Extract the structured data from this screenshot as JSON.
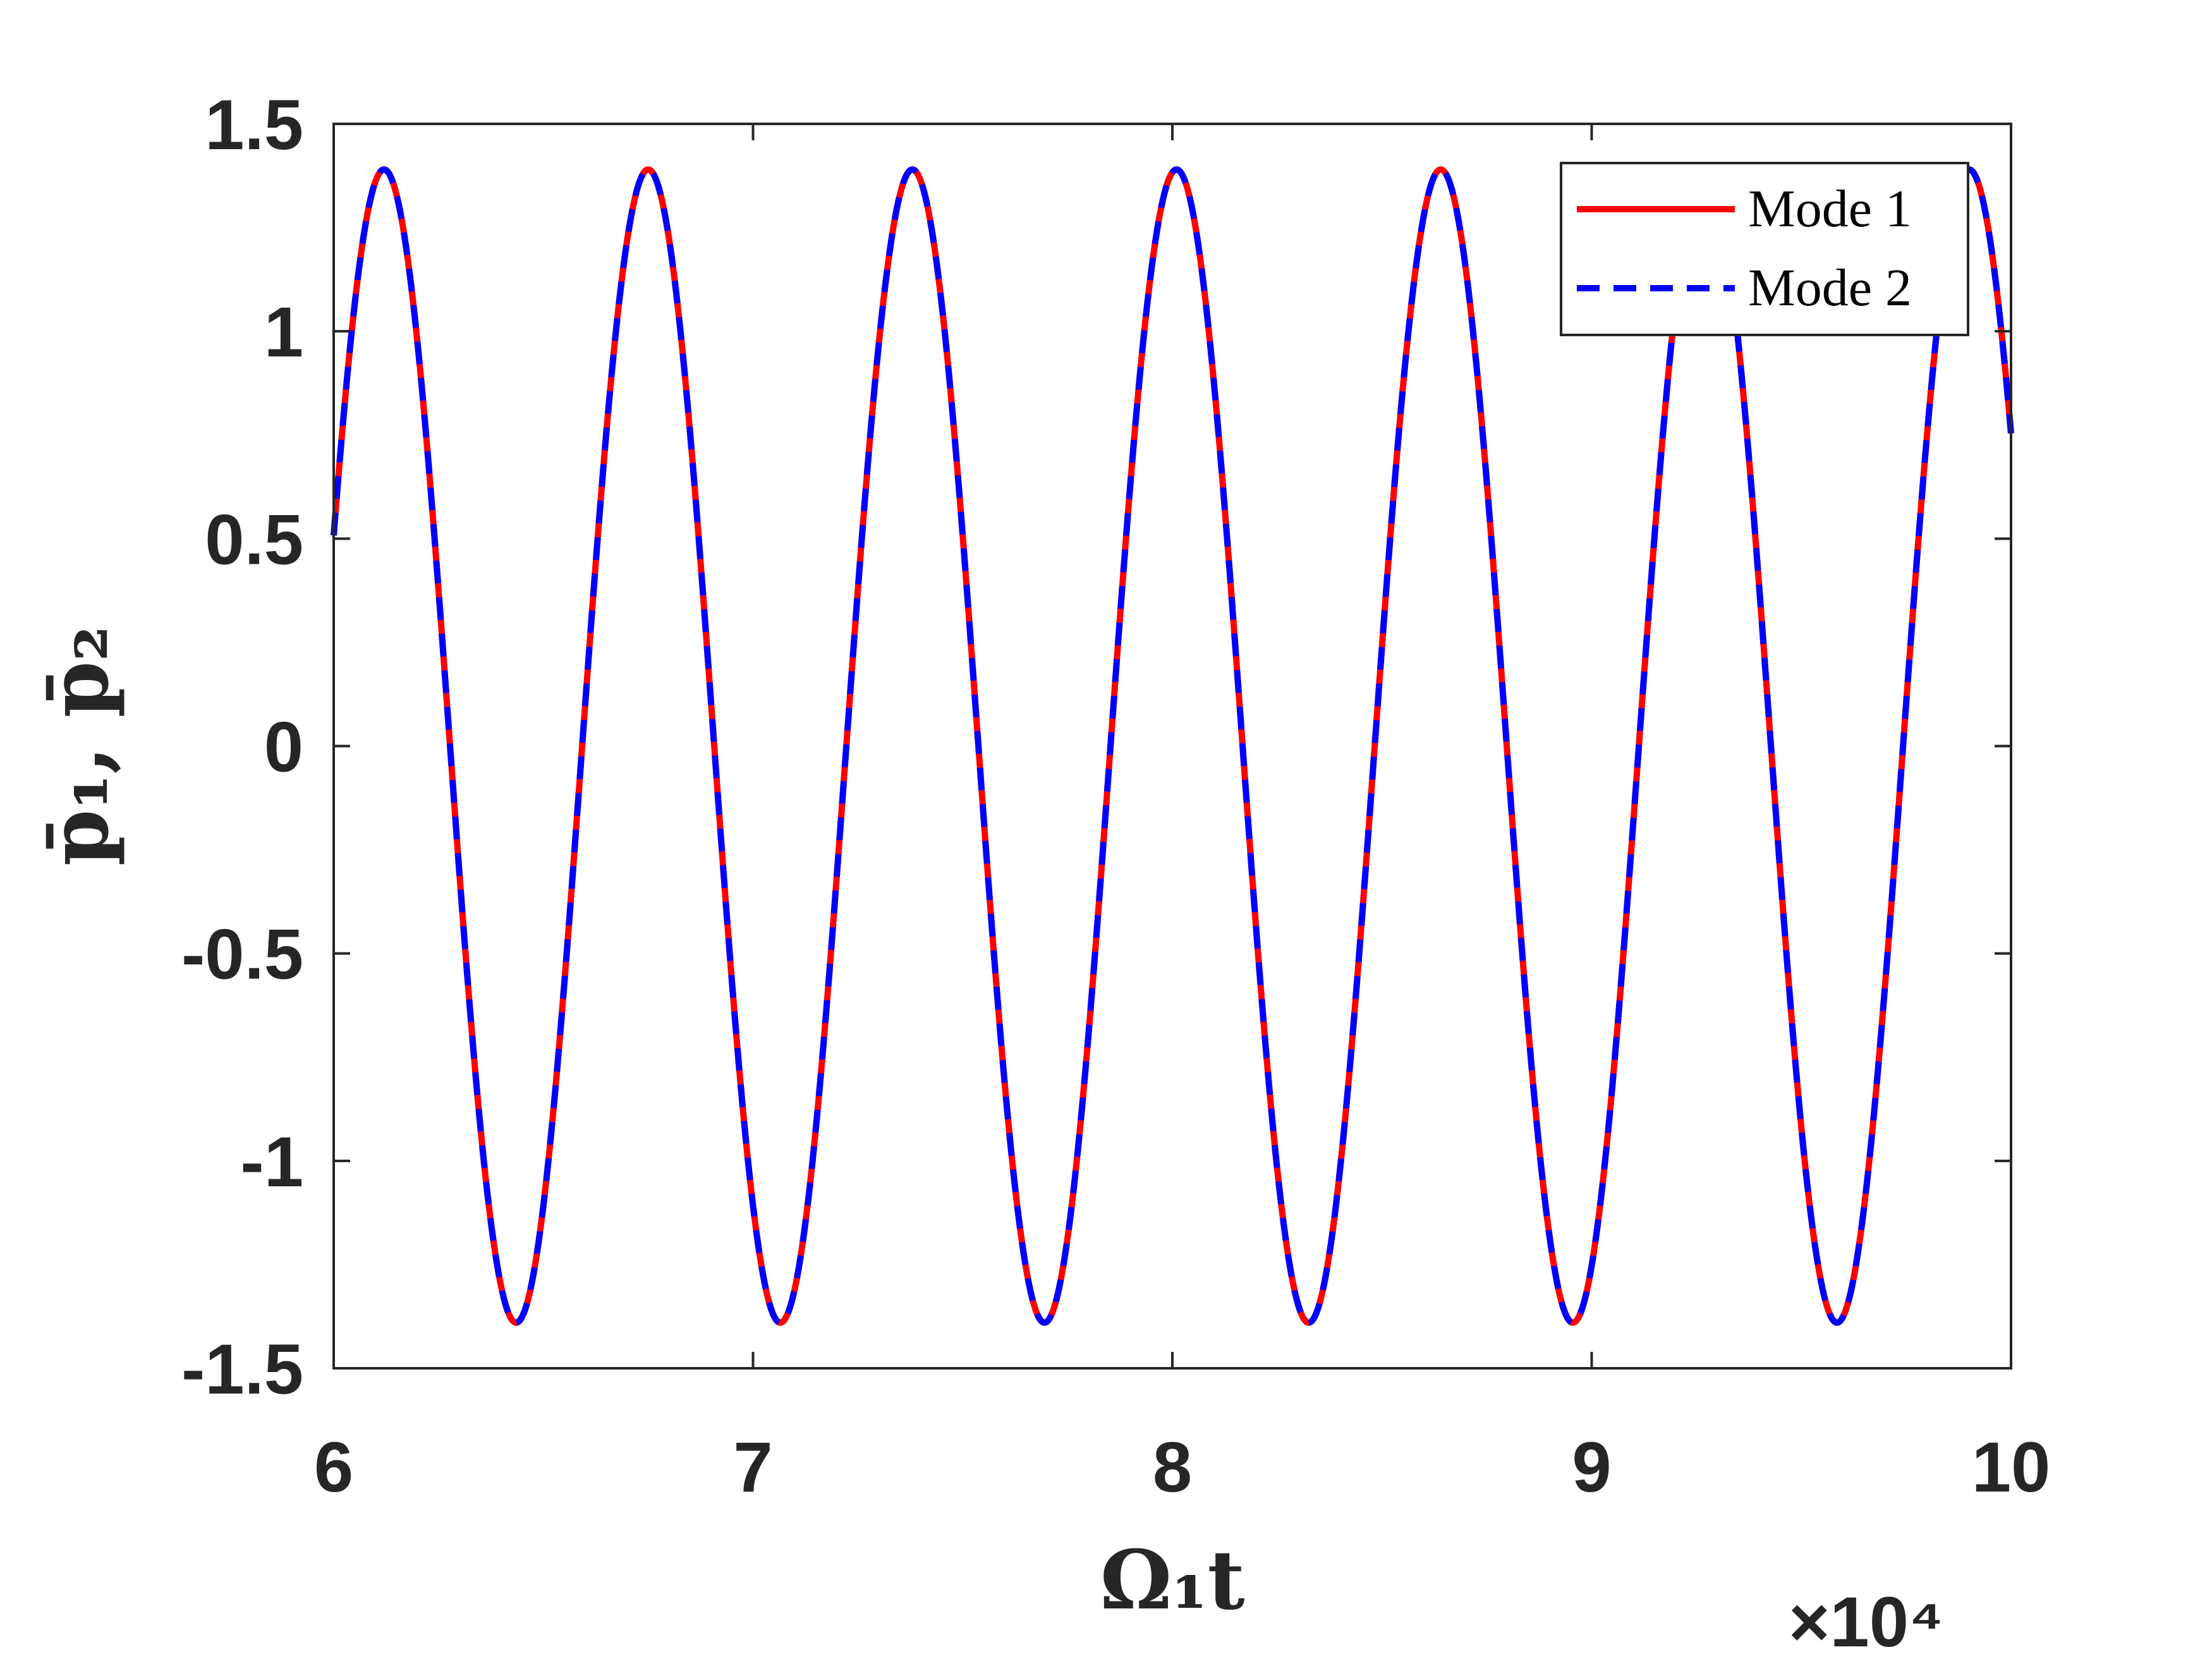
{
  "chart_data": {
    "type": "line",
    "xlabel": "Ω₁t",
    "ylabel": "p̄₁, p̄₂",
    "x_multiplier": "×10⁴",
    "xlim": [
      60000,
      100000
    ],
    "ylim": [
      -1.5,
      1.5
    ],
    "xticks": [
      60000,
      70000,
      80000,
      90000,
      100000
    ],
    "xtick_labels": [
      "6",
      "7",
      "8",
      "9",
      "10"
    ],
    "yticks": [
      -1.5,
      -1,
      -0.5,
      0,
      0.5,
      1,
      1.5
    ],
    "ytick_labels": [
      "-1.5",
      "-1",
      "-0.5",
      "0",
      "0.5",
      "1",
      "1.5"
    ],
    "grid": false,
    "box": true,
    "legend_position": "top-right",
    "series": [
      {
        "name": "Mode 1",
        "color": "#ff0000",
        "style": "solid",
        "amplitude": 1.39,
        "period": 6300,
        "first_peak_x": 61200,
        "x": [
          60000,
          61200,
          64350,
          67500,
          70650,
          73800,
          76950,
          80100,
          83250,
          86400,
          89550,
          92700,
          95850,
          99000,
          100000
        ],
        "y": [
          0.55,
          1.39,
          -1.39,
          1.39,
          -1.39,
          1.39,
          -1.39,
          1.39,
          -1.39,
          1.39,
          -1.39,
          1.39,
          -1.39,
          1.39,
          0.6
        ]
      },
      {
        "name": "Mode 2",
        "color": "#0000ff",
        "style": "dashed",
        "amplitude": 1.39,
        "period": 6300,
        "first_peak_x": 61200,
        "x": [
          60000,
          61200,
          64350,
          67500,
          70650,
          73800,
          76950,
          80100,
          83250,
          86400,
          89550,
          92700,
          95850,
          99000,
          100000
        ],
        "y": [
          0.55,
          1.39,
          -1.39,
          1.39,
          -1.39,
          1.39,
          -1.39,
          1.39,
          -1.39,
          1.39,
          -1.39,
          1.39,
          -1.39,
          1.39,
          0.6
        ]
      }
    ]
  }
}
